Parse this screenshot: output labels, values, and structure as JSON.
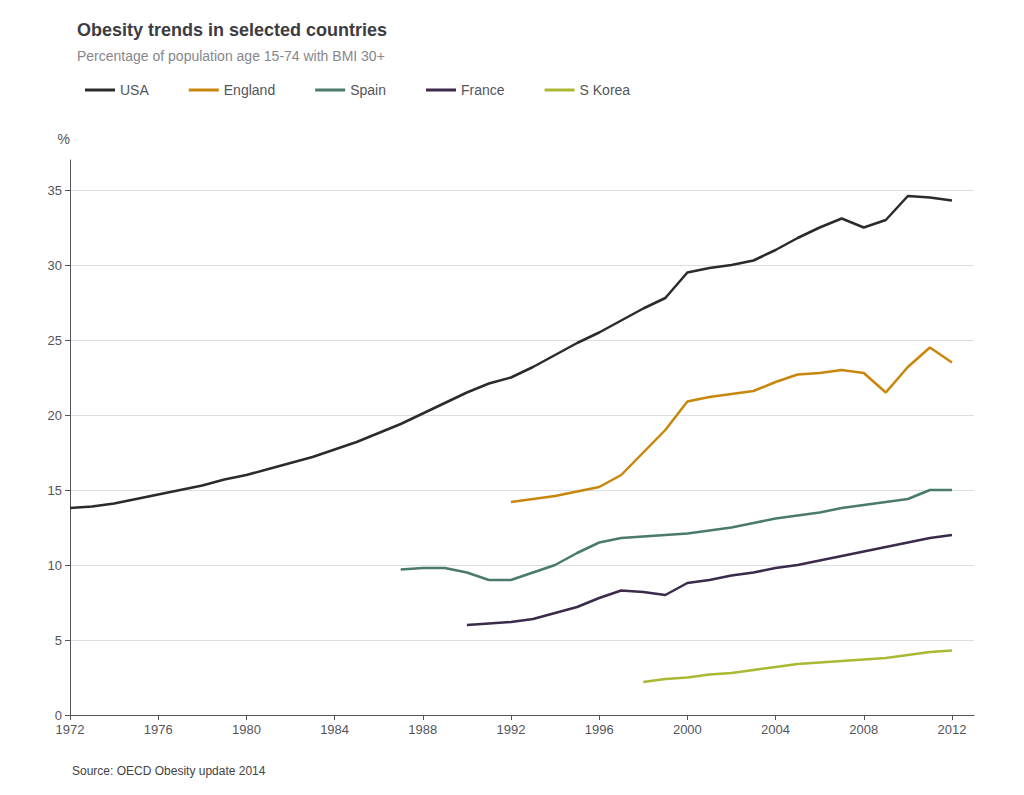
{
  "chart_data": {
    "type": "line",
    "title": "Obesity trends in selected countries",
    "subtitle": "Percentage of population age 15-74 with BMI 30+",
    "ylabel": "%",
    "annotation": "Source: OECD Obesity update 2014",
    "xlim": [
      1972,
      2013
    ],
    "xticks": [
      1972,
      1976,
      1980,
      1984,
      1988,
      1992,
      1996,
      2000,
      2004,
      2008,
      2012
    ],
    "ylim": [
      0,
      37
    ],
    "yticks": [
      0,
      5,
      10,
      15,
      20,
      25,
      30,
      35
    ],
    "grid": true,
    "legend": "top left",
    "series": [
      {
        "name": "USA",
        "color": "#2b2b2b",
        "x": [
          1972,
          1973,
          1974,
          1975,
          1976,
          1977,
          1978,
          1979,
          1980,
          1981,
          1982,
          1983,
          1984,
          1985,
          1986,
          1987,
          1988,
          1989,
          1990,
          1991,
          1992,
          1993,
          1994,
          1995,
          1996,
          1997,
          1998,
          1999,
          2000,
          2001,
          2002,
          2003,
          2004,
          2005,
          2006,
          2007,
          2008,
          2009,
          2010,
          2011,
          2012
        ],
        "values": [
          13.8,
          13.9,
          14.1,
          14.4,
          14.7,
          15.0,
          15.3,
          15.7,
          16.0,
          16.4,
          16.8,
          17.2,
          17.7,
          18.2,
          18.8,
          19.4,
          20.1,
          20.8,
          21.5,
          22.1,
          22.5,
          23.2,
          24.0,
          24.8,
          25.5,
          26.3,
          27.1,
          27.8,
          29.5,
          29.8,
          30.0,
          30.3,
          31.0,
          31.8,
          32.5,
          33.1,
          32.5,
          33.0,
          34.6,
          34.5,
          34.3
        ]
      },
      {
        "name": "England",
        "color": "#c8860a",
        "x": [
          1992,
          1993,
          1994,
          1995,
          1996,
          1997,
          1998,
          1999,
          2000,
          2001,
          2002,
          2003,
          2004,
          2005,
          2006,
          2007,
          2008,
          2009,
          2010,
          2011,
          2012
        ],
        "values": [
          14.2,
          14.4,
          14.6,
          14.9,
          15.2,
          16.0,
          17.5,
          19.0,
          20.9,
          21.2,
          21.4,
          21.6,
          22.2,
          22.7,
          22.8,
          23.0,
          22.8,
          21.5,
          23.2,
          24.5,
          23.5
        ]
      },
      {
        "name": "Spain",
        "color": "#4a7a6a",
        "x": [
          1987,
          1988,
          1989,
          1990,
          1991,
          1992,
          1993,
          1994,
          1995,
          1996,
          1997,
          1998,
          1999,
          2000,
          2001,
          2002,
          2003,
          2004,
          2005,
          2006,
          2007,
          2008,
          2009,
          2010,
          2011,
          2012
        ],
        "values": [
          9.7,
          9.8,
          9.8,
          9.5,
          9.0,
          9.0,
          9.5,
          10.0,
          10.8,
          11.5,
          11.8,
          11.9,
          12.0,
          12.1,
          12.3,
          12.5,
          12.8,
          13.1,
          13.3,
          13.5,
          13.8,
          14.0,
          14.2,
          14.4,
          15.0,
          15.0
        ]
      },
      {
        "name": "France",
        "color": "#3b2a4a",
        "x": [
          1990,
          1991,
          1992,
          1993,
          1994,
          1995,
          1996,
          1997,
          1998,
          1999,
          2000,
          2001,
          2002,
          2003,
          2004,
          2005,
          2006,
          2007,
          2008,
          2009,
          2010,
          2011,
          2012
        ],
        "values": [
          6.0,
          6.1,
          6.2,
          6.4,
          6.8,
          7.2,
          7.8,
          8.3,
          8.2,
          8.0,
          8.8,
          9.0,
          9.3,
          9.5,
          9.8,
          10.0,
          10.3,
          10.6,
          10.9,
          11.2,
          11.5,
          11.8,
          12.0
        ]
      },
      {
        "name": "S Korea",
        "color": "#aab832",
        "x": [
          1998,
          1999,
          2000,
          2001,
          2002,
          2003,
          2004,
          2005,
          2006,
          2007,
          2008,
          2009,
          2010,
          2011,
          2012
        ],
        "values": [
          2.2,
          2.4,
          2.5,
          2.7,
          2.8,
          3.0,
          3.2,
          3.4,
          3.5,
          3.6,
          3.7,
          3.8,
          4.0,
          4.2,
          4.3
        ]
      }
    ]
  }
}
